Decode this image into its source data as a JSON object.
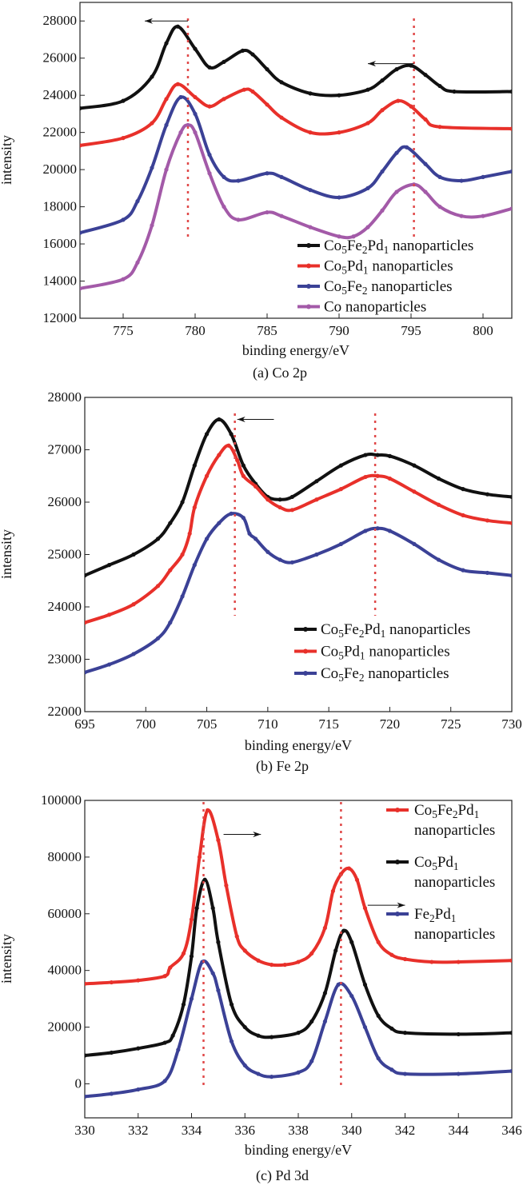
{
  "chart_data": [
    {
      "type": "line",
      "caption": "(a) Co 2p",
      "xlabel": "binding energy/eV",
      "ylabel": "intensity",
      "xlim": [
        772,
        802
      ],
      "ylim": [
        12000,
        29000
      ],
      "xticks": [
        775,
        780,
        785,
        790,
        795,
        800
      ],
      "yticks": [
        12000,
        14000,
        16000,
        18000,
        20000,
        22000,
        24000,
        26000,
        28000
      ],
      "grid": false,
      "legend_position": "bottom-right",
      "reference_lines_x": [
        779.5,
        795.2
      ],
      "reference_line_color": "#e04848",
      "arrows": [
        {
          "from": [
            779.5,
            28000
          ],
          "to": [
            776.5,
            28000
          ]
        },
        {
          "from": [
            795.2,
            25700
          ],
          "to": [
            792.0,
            25700
          ]
        }
      ],
      "series": [
        {
          "name": "Co5Fe2Pd1 nanoparticles",
          "color": "#111111",
          "x": [
            772,
            775,
            777,
            778,
            778.8,
            780,
            781,
            782,
            783.3,
            784,
            785,
            786,
            788,
            790,
            792,
            793,
            794,
            795,
            796,
            797,
            798,
            802
          ],
          "y": [
            23300,
            23700,
            25000,
            26800,
            27700,
            26500,
            25500,
            25800,
            26400,
            26200,
            25400,
            24700,
            24100,
            24000,
            24300,
            24800,
            25400,
            25600,
            25100,
            24500,
            24200,
            24200
          ]
        },
        {
          "name": "Co5Pd1 nanoparticles",
          "color": "#e8302a",
          "x": [
            772,
            775,
            777,
            778,
            778.8,
            780,
            781,
            782,
            783.4,
            784,
            785,
            786,
            788,
            790,
            792,
            793,
            794.1,
            795,
            796,
            797,
            802
          ],
          "y": [
            21300,
            21700,
            22500,
            23800,
            24600,
            23900,
            23400,
            23800,
            24300,
            24200,
            23500,
            22800,
            22000,
            22000,
            22500,
            23200,
            23700,
            23400,
            22700,
            22300,
            22200
          ]
        },
        {
          "name": "Co5Fe2 nanoparticles",
          "color": "#3b4196",
          "x": [
            772,
            775,
            776,
            777,
            778,
            779,
            780,
            781,
            782,
            783,
            785,
            786,
            788,
            790,
            792,
            793,
            794,
            794.7,
            796,
            797,
            798.5,
            800,
            802
          ],
          "y": [
            16600,
            17300,
            18300,
            20100,
            22400,
            23900,
            23000,
            20800,
            19600,
            19400,
            19800,
            19600,
            18900,
            18500,
            19000,
            19900,
            20900,
            21200,
            20300,
            19600,
            19400,
            19600,
            19900
          ]
        },
        {
          "name": "Co nanoparticles",
          "color": "#a35aa8",
          "x": [
            772,
            775,
            776,
            777,
            778,
            779,
            779.5,
            780,
            781,
            782,
            783,
            785,
            786,
            788,
            790,
            791,
            792,
            793,
            794,
            795.2,
            796,
            797,
            798.5,
            800,
            802
          ],
          "y": [
            13600,
            14100,
            15000,
            17000,
            20000,
            22000,
            22400,
            22000,
            19800,
            18000,
            17300,
            17700,
            17500,
            16900,
            16400,
            16400,
            16900,
            17800,
            18800,
            19200,
            18800,
            18000,
            17500,
            17500,
            17900
          ]
        }
      ]
    },
    {
      "type": "line",
      "caption": "(b) Fe 2p",
      "xlabel": "binding energy/eV",
      "ylabel": "intensity",
      "xlim": [
        695,
        730
      ],
      "ylim": [
        22000,
        28000
      ],
      "xticks": [
        695,
        700,
        705,
        710,
        715,
        720,
        725,
        730
      ],
      "yticks": [
        22000,
        23000,
        24000,
        25000,
        26000,
        27000,
        28000
      ],
      "grid": false,
      "legend_position": "bottom-right",
      "reference_lines_x": [
        707.3,
        718.8
      ],
      "reference_line_color": "#e04848",
      "arrows": [
        {
          "from": [
            710.5,
            27580
          ],
          "to": [
            707.5,
            27580
          ]
        }
      ],
      "series": [
        {
          "name": "Co5Fe2Pd1 nanoparticles",
          "color": "#111111",
          "x": [
            695,
            697,
            699,
            701,
            702,
            703,
            704,
            705,
            706,
            707,
            708,
            709,
            710,
            711,
            712,
            714,
            716,
            718,
            719,
            720,
            722,
            724,
            726,
            728,
            730
          ],
          "y": [
            24600,
            24800,
            25000,
            25300,
            25600,
            26000,
            26700,
            27300,
            27580,
            27300,
            26700,
            26350,
            26100,
            26050,
            26100,
            26400,
            26700,
            26900,
            26900,
            26880,
            26700,
            26450,
            26250,
            26150,
            26100
          ]
        },
        {
          "name": "Co5Pd1 nanoparticles",
          "color": "#e8302a",
          "x": [
            695,
            697,
            699,
            701,
            702,
            703,
            703.6,
            704,
            705,
            706,
            706.8,
            707.5,
            708,
            709,
            710,
            711,
            712,
            714,
            716,
            718,
            719,
            720,
            722,
            724,
            726,
            728,
            730
          ],
          "y": [
            23700,
            23850,
            24050,
            24400,
            24700,
            25000,
            25400,
            25900,
            26500,
            26900,
            27080,
            26800,
            26500,
            26300,
            26050,
            25900,
            25850,
            26050,
            26250,
            26480,
            26500,
            26450,
            26200,
            25950,
            25750,
            25650,
            25600
          ]
        },
        {
          "name": "Co5Fe2 nanoparticles",
          "color": "#3b4196",
          "x": [
            695,
            697,
            699,
            701,
            702,
            703,
            704,
            705,
            706,
            707,
            708,
            708.5,
            709,
            710,
            711,
            712,
            714,
            716,
            718,
            719,
            720,
            722,
            724,
            726,
            728,
            730
          ],
          "y": [
            22750,
            22900,
            23100,
            23400,
            23700,
            24200,
            24800,
            25300,
            25600,
            25780,
            25700,
            25400,
            25300,
            25050,
            24900,
            24850,
            25000,
            25200,
            25450,
            25500,
            25450,
            25200,
            24900,
            24700,
            24650,
            24600
          ]
        }
      ]
    },
    {
      "type": "line",
      "caption": "(c) Pd 3d",
      "xlabel": "binding energy/eV",
      "ylabel": "intensity",
      "xlim": [
        330,
        346
      ],
      "ylim": [
        -12000,
        100000
      ],
      "xticks": [
        330,
        332,
        334,
        336,
        338,
        340,
        342,
        344,
        346
      ],
      "yticks": [
        0,
        20000,
        40000,
        60000,
        80000,
        100000
      ],
      "grid": false,
      "legend_position": "top-right",
      "reference_lines_x": [
        334.45,
        339.6
      ],
      "reference_line_color": "#e04848",
      "arrows": [
        {
          "from": [
            335.2,
            88000
          ],
          "to": [
            336.6,
            88000
          ]
        },
        {
          "from": [
            340.6,
            63000
          ],
          "to": [
            342.0,
            63000
          ]
        }
      ],
      "series": [
        {
          "name": "Co5Fe2Pd1 nanoparticles",
          "color": "#e8302a",
          "x": [
            330,
            331,
            332,
            333,
            333.2,
            333.7,
            334,
            334.3,
            334.6,
            335,
            335.3,
            335.7,
            336,
            336.5,
            337,
            337.5,
            338,
            338.5,
            339,
            339.3,
            339.6,
            339.9,
            340.2,
            340.5,
            341,
            341.5,
            342,
            343,
            344,
            346
          ],
          "y": [
            35300,
            35800,
            36500,
            38000,
            41000,
            46000,
            58000,
            80000,
            96500,
            86000,
            70000,
            52000,
            47000,
            43500,
            42000,
            42000,
            43000,
            46000,
            55000,
            68000,
            74000,
            76000,
            72000,
            62000,
            50000,
            45500,
            44000,
            43000,
            43000,
            43500
          ]
        },
        {
          "name": "Co5Pd1 nanoparticles",
          "color": "#111111",
          "x": [
            330,
            331,
            332,
            333,
            333.3,
            333.7,
            334,
            334.2,
            334.5,
            334.8,
            335,
            335.5,
            336,
            336.5,
            337,
            338,
            338.5,
            339,
            339.4,
            339.7,
            340,
            340.5,
            341,
            341.5,
            342,
            344,
            346
          ],
          "y": [
            10000,
            11000,
            12500,
            14500,
            17000,
            28000,
            45000,
            62000,
            72000,
            62000,
            50000,
            28000,
            20000,
            17000,
            16500,
            18000,
            22000,
            32000,
            47000,
            54000,
            50000,
            35000,
            24000,
            19500,
            18000,
            17500,
            18000
          ]
        },
        {
          "name": "Fe2Pd1 nanoparticles",
          "color": "#3b4196",
          "x": [
            330,
            331,
            332,
            333,
            333.5,
            334,
            334.4,
            334.8,
            335,
            335.5,
            336,
            336.5,
            337,
            338,
            338.5,
            339,
            339.5,
            340,
            340.5,
            341,
            341.5,
            342,
            344,
            346
          ],
          "y": [
            -4500,
            -3500,
            -2000,
            1000,
            12000,
            30000,
            43000,
            39000,
            33000,
            15000,
            6500,
            3500,
            2500,
            4000,
            8000,
            22000,
            35000,
            31000,
            20000,
            9000,
            5000,
            3500,
            3500,
            4500
          ]
        }
      ]
    }
  ]
}
